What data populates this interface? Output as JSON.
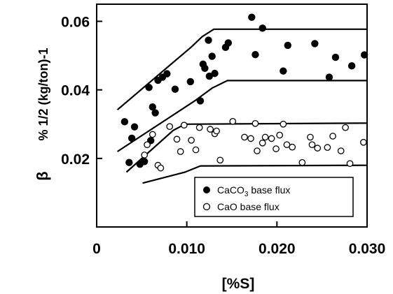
{
  "chart_data": {
    "type": "scatter",
    "xlabel": "[%S]",
    "ylabel_symbol": "β",
    "ylabel_unit": "% 1/2 (kg/ton)-1",
    "xlim": [
      0,
      0.03
    ],
    "ylim": [
      0,
      0.065
    ],
    "x_ticks": [
      {
        "value": 0,
        "label": "0"
      },
      {
        "value": 0.01,
        "label": "0.010"
      },
      {
        "value": 0.02,
        "label": "0.020"
      },
      {
        "value": 0.03,
        "label": "0.030"
      }
    ],
    "y_ticks": [
      {
        "value": 0.02,
        "label": "0.02"
      },
      {
        "value": 0.04,
        "label": "0.04"
      },
      {
        "value": 0.06,
        "label": "0.06"
      }
    ],
    "legend_position": "bottom-right",
    "series": [
      {
        "name": "CaCO3 base flux",
        "marker": "filled-circle",
        "points": [
          [
            0.0031,
            0.0307
          ],
          [
            0.0036,
            0.0188
          ],
          [
            0.0039,
            0.0259
          ],
          [
            0.0042,
            0.0292
          ],
          [
            0.0048,
            0.0183
          ],
          [
            0.0053,
            0.0191
          ],
          [
            0.0058,
            0.0407
          ],
          [
            0.006,
            0.0252
          ],
          [
            0.0062,
            0.035
          ],
          [
            0.0065,
            0.0333
          ],
          [
            0.0068,
            0.0428
          ],
          [
            0.0073,
            0.0437
          ],
          [
            0.0078,
            0.0447
          ],
          [
            0.0087,
            0.0402
          ],
          [
            0.0104,
            0.0424
          ],
          [
            0.0115,
            0.0368
          ],
          [
            0.0118,
            0.0475
          ],
          [
            0.012,
            0.0463
          ],
          [
            0.0124,
            0.0545
          ],
          [
            0.0125,
            0.044
          ],
          [
            0.0128,
            0.0498
          ],
          [
            0.0131,
            0.0448
          ],
          [
            0.0143,
            0.0524
          ],
          [
            0.0146,
            0.0537
          ],
          [
            0.0172,
            0.0612
          ],
          [
            0.0176,
            0.0503
          ],
          [
            0.0184,
            0.058
          ],
          [
            0.0207,
            0.0455
          ],
          [
            0.0212,
            0.053
          ],
          [
            0.0242,
            0.0535
          ],
          [
            0.0258,
            0.0437
          ],
          [
            0.0265,
            0.0495
          ],
          [
            0.0283,
            0.047
          ],
          [
            0.0297,
            0.0502
          ]
        ]
      },
      {
        "name": "CaO base flux",
        "marker": "open-circle",
        "points": [
          [
            0.0053,
            0.021
          ],
          [
            0.0056,
            0.024
          ],
          [
            0.0062,
            0.027
          ],
          [
            0.0068,
            0.018
          ],
          [
            0.0071,
            0.0172
          ],
          [
            0.0081,
            0.0293
          ],
          [
            0.0089,
            0.0256
          ],
          [
            0.0093,
            0.022
          ],
          [
            0.0097,
            0.0297
          ],
          [
            0.0105,
            0.0253
          ],
          [
            0.011,
            0.0225
          ],
          [
            0.0114,
            0.029
          ],
          [
            0.0126,
            0.0285
          ],
          [
            0.0131,
            0.0272
          ],
          [
            0.0133,
            0.028
          ],
          [
            0.0137,
            0.0195
          ],
          [
            0.0151,
            0.0308
          ],
          [
            0.0164,
            0.0262
          ],
          [
            0.0171,
            0.0258
          ],
          [
            0.0176,
            0.0302
          ],
          [
            0.0178,
            0.0222
          ],
          [
            0.0184,
            0.0245
          ],
          [
            0.0187,
            0.0262
          ],
          [
            0.0194,
            0.0258
          ],
          [
            0.0199,
            0.0228
          ],
          [
            0.0203,
            0.0268
          ],
          [
            0.0207,
            0.03
          ],
          [
            0.0211,
            0.024
          ],
          [
            0.0217,
            0.0233
          ],
          [
            0.0228,
            0.0188
          ],
          [
            0.0237,
            0.0262
          ],
          [
            0.0239,
            0.024
          ],
          [
            0.0245,
            0.023
          ],
          [
            0.0256,
            0.0232
          ],
          [
            0.0262,
            0.0265
          ],
          [
            0.0271,
            0.0222
          ],
          [
            0.0276,
            0.029
          ],
          [
            0.0281,
            0.0185
          ],
          [
            0.0296,
            0.0247
          ]
        ]
      }
    ],
    "boundary_lines": [
      [
        [
          0.0023,
          0.0342
        ],
        [
          0.0105,
          0.0525
        ],
        [
          0.0117,
          0.0555
        ],
        [
          0.013,
          0.0577
        ],
        [
          0.03,
          0.0577
        ]
      ],
      [
        [
          0.0023,
          0.022
        ],
        [
          0.011,
          0.037
        ],
        [
          0.0128,
          0.0405
        ],
        [
          0.0145,
          0.0427
        ],
        [
          0.03,
          0.0427
        ]
      ],
      [
        [
          0.0033,
          0.016
        ],
        [
          0.0085,
          0.0282
        ],
        [
          0.0098,
          0.03
        ],
        [
          0.03,
          0.0303
        ]
      ],
      [
        [
          0.0051,
          0.0128
        ],
        [
          0.0098,
          0.016
        ],
        [
          0.0115,
          0.0178
        ],
        [
          0.03,
          0.018
        ]
      ]
    ]
  }
}
